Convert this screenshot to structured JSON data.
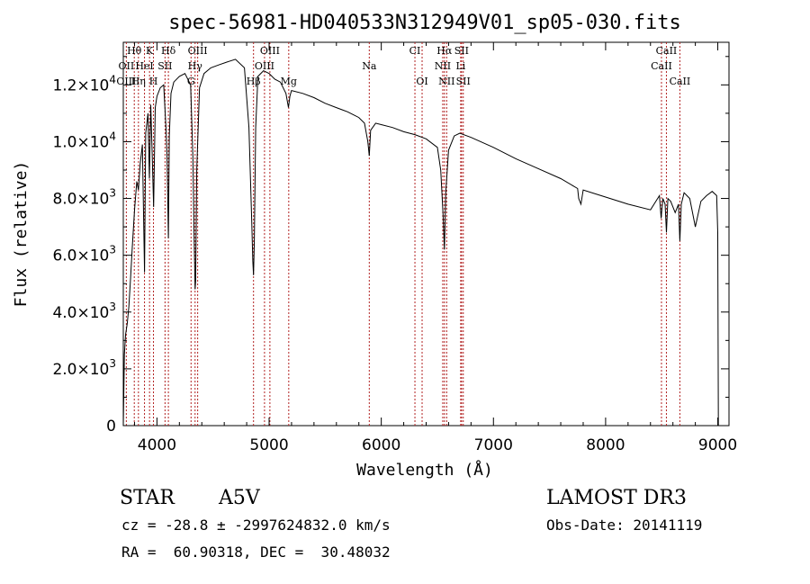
{
  "chart_data": {
    "type": "line",
    "title": "spec-56981-HD040533N312949V01_sp05-030.fits",
    "xlabel": "Wavelength (Å)",
    "ylabel": "Flux (relative)",
    "xlim": [
      3700,
      9100
    ],
    "ylim": [
      0,
      13500
    ],
    "x_ticks": [
      4000,
      5000,
      6000,
      7000,
      8000,
      9000
    ],
    "x_tick_labels": [
      "4000",
      "5000",
      "6000",
      "7000",
      "8000",
      "9000"
    ],
    "y_ticks": [
      0,
      2000,
      4000,
      6000,
      8000,
      10000,
      12000
    ],
    "y_tick_labels": [
      {
        "mant": "0",
        "exp": ""
      },
      {
        "mant": "2.0×10",
        "exp": "3"
      },
      {
        "mant": "4.0×10",
        "exp": "3"
      },
      {
        "mant": "6.0×10",
        "exp": "3"
      },
      {
        "mant": "8.0×10",
        "exp": "3"
      },
      {
        "mant": "1.0×10",
        "exp": "4"
      },
      {
        "mant": "1.2×10",
        "exp": "4"
      }
    ],
    "grid": false,
    "line_color": "#000000",
    "marker_color": "#b22222",
    "series": [
      {
        "x": [
          3700,
          3710,
          3720,
          3735,
          3750,
          3765,
          3780,
          3800,
          3820,
          3835,
          3850,
          3870,
          3889,
          3900,
          3920,
          3933,
          3945,
          3955,
          3970,
          3985,
          4000,
          4030,
          4060,
          4080,
          4090,
          4102,
          4110,
          4125,
          4150,
          4200,
          4250,
          4300,
          4320,
          4330,
          4340,
          4345,
          4355,
          4380,
          4420,
          4480,
          4550,
          4620,
          4700,
          4780,
          4820,
          4845,
          4855,
          4861,
          4868,
          4880,
          4900,
          4950,
          5000,
          5050,
          5100,
          5150,
          5172,
          5185,
          5200,
          5300,
          5400,
          5500,
          5600,
          5700,
          5800,
          5850,
          5880,
          5893,
          5905,
          5950,
          6000,
          6100,
          6200,
          6300,
          6400,
          6500,
          6530,
          6550,
          6563,
          6575,
          6600,
          6650,
          6700,
          6800,
          7000,
          7200,
          7400,
          7600,
          7750,
          7760,
          7780,
          7800,
          8000,
          8200,
          8400,
          8480,
          8495,
          8510,
          8530,
          8542,
          8555,
          8580,
          8620,
          8650,
          8662,
          8675,
          8700,
          8750,
          8800,
          8850,
          8900,
          8950,
          8990,
          9000,
          9005
        ],
        "y": [
          0,
          2500,
          3200,
          3600,
          4200,
          5200,
          6300,
          7600,
          8600,
          8300,
          9200,
          9900,
          5400,
          10300,
          11000,
          8700,
          11300,
          9900,
          7700,
          11200,
          11600,
          11900,
          12000,
          10500,
          9500,
          6600,
          10200,
          11700,
          12100,
          12300,
          12400,
          12000,
          9500,
          7000,
          4800,
          5100,
          9000,
          11900,
          12400,
          12600,
          12700,
          12800,
          12900,
          12600,
          10500,
          7200,
          5800,
          5300,
          6500,
          10500,
          12300,
          12500,
          12400,
          12200,
          12100,
          11700,
          11200,
          11600,
          11800,
          11700,
          11550,
          11350,
          11200,
          11050,
          10850,
          10650,
          10000,
          9500,
          10400,
          10650,
          10600,
          10500,
          10350,
          10250,
          10100,
          9800,
          9000,
          7500,
          6200,
          8200,
          9700,
          10200,
          10300,
          10150,
          9800,
          9400,
          9050,
          8700,
          8350,
          8000,
          7800,
          8300,
          8050,
          7800,
          7600,
          8100,
          7300,
          8000,
          7800,
          6800,
          8000,
          7900,
          7500,
          7800,
          6500,
          7800,
          8200,
          8000,
          7000,
          7900,
          8100,
          8250,
          8100,
          6800,
          0
        ]
      }
    ],
    "line_markers": [
      {
        "name": "Hθ",
        "wl": 3798,
        "row": 0
      },
      {
        "name": "K",
        "wl": 3934,
        "row": 0
      },
      {
        "name": "Hδ",
        "wl": 4102,
        "row": 0
      },
      {
        "name": "OIII",
        "wl": 4363,
        "row": 0
      },
      {
        "name": "OIII",
        "wl": 5007,
        "row": 0
      },
      {
        "name": "CI",
        "wl": 6300,
        "row": 0
      },
      {
        "name": "Hα",
        "wl": 6563,
        "row": 0
      },
      {
        "name": "SII",
        "wl": 6716,
        "row": 0
      },
      {
        "name": "CaII",
        "wl": 8542,
        "row": 0
      },
      {
        "name": "OII",
        "wl": 3727,
        "row": 1
      },
      {
        "name": "HeI",
        "wl": 3889,
        "row": 1
      },
      {
        "name": "SII",
        "wl": 4072,
        "row": 1
      },
      {
        "name": "Hγ",
        "wl": 4340,
        "row": 1
      },
      {
        "name": "OIII",
        "wl": 4959,
        "row": 1
      },
      {
        "name": "Na",
        "wl": 5893,
        "row": 1
      },
      {
        "name": "NII",
        "wl": 6548,
        "row": 1
      },
      {
        "name": "Li",
        "wl": 6708,
        "row": 1
      },
      {
        "name": "CaII",
        "wl": 8498,
        "row": 1
      },
      {
        "name": "OIII",
        "wl": 3727,
        "row": 2
      },
      {
        "name": "Hη",
        "wl": 3835,
        "row": 2
      },
      {
        "name": "H",
        "wl": 3969,
        "row": 2
      },
      {
        "name": "G",
        "wl": 4304,
        "row": 2
      },
      {
        "name": "Hβ",
        "wl": 4861,
        "row": 2
      },
      {
        "name": "Mg",
        "wl": 5175,
        "row": 2
      },
      {
        "name": "OI",
        "wl": 6364,
        "row": 2
      },
      {
        "name": "NII",
        "wl": 6583,
        "row": 2
      },
      {
        "name": "SII",
        "wl": 6731,
        "row": 2
      },
      {
        "name": "CaII",
        "wl": 8662,
        "row": 2
      }
    ]
  },
  "footer": {
    "object_type": "STAR",
    "spectral_class": "A5V",
    "survey": "LAMOST DR3",
    "cz_text": "cz = -28.8 ± -2997624832.0 km/s",
    "obs_date": "Obs-Date: 20141119",
    "coords": "RA =  60.90318, DEC =  30.48032"
  }
}
